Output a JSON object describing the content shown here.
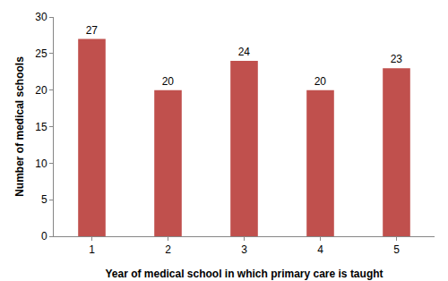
{
  "chart_data": {
    "type": "bar",
    "x_label": "Year of medical school in which primary care is taught",
    "y_label": "Number of medical schools",
    "categories": [
      "1",
      "2",
      "3",
      "4",
      "5"
    ],
    "values": [
      27,
      20,
      24,
      20,
      23
    ],
    "color": "#c0504d",
    "ylim": [
      0,
      30
    ],
    "yticks": [
      0,
      5,
      10,
      15,
      20,
      25,
      30
    ],
    "grid": false,
    "data_labels": true
  }
}
